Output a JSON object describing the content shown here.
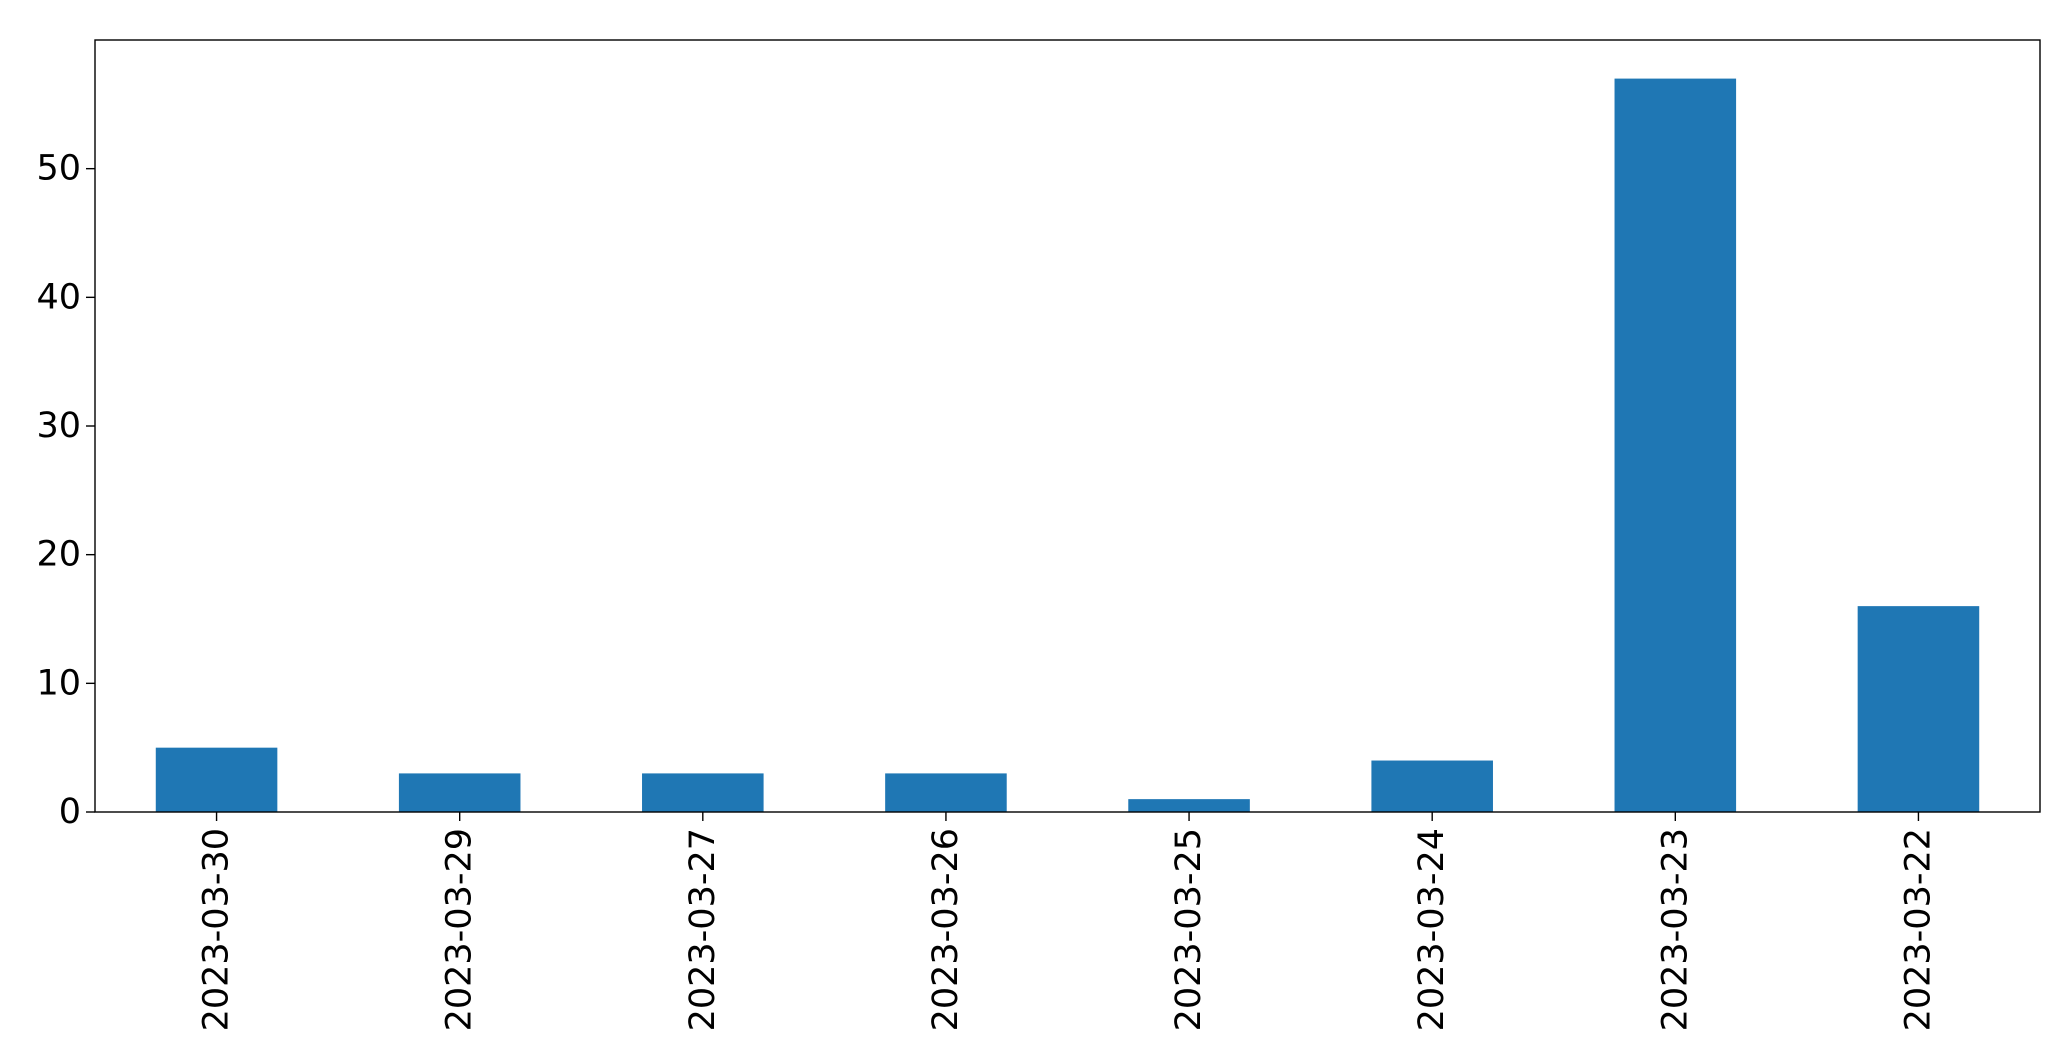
{
  "chart_data": {
    "type": "bar",
    "categories": [
      "2023-03-30",
      "2023-03-29",
      "2023-03-27",
      "2023-03-26",
      "2023-03-25",
      "2023-03-24",
      "2023-03-23",
      "2023-03-22"
    ],
    "values": [
      5,
      3,
      3,
      3,
      1,
      4,
      57,
      16
    ],
    "title": "",
    "xlabel": "",
    "ylabel": "",
    "ylim": [
      0,
      60
    ],
    "yticks": [
      0,
      10,
      20,
      30,
      40,
      50
    ],
    "xtick_rotation": "vertical",
    "grid": false,
    "legend": "none",
    "colors": {
      "bar": "#1f77b4",
      "axes": "#000000",
      "background": "#ffffff"
    }
  }
}
